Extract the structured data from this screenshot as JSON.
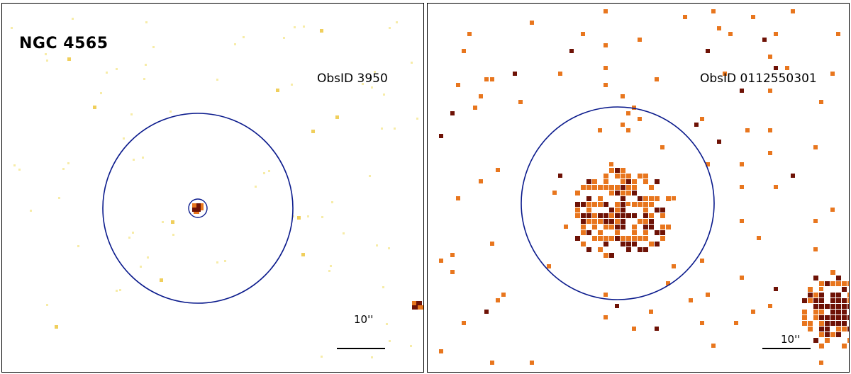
{
  "left_panel": {
    "title": "NGC 4565",
    "obsid": "ObsID 3950",
    "scale_label": "10''"
  },
  "right_panel": {
    "obsid": "ObsID 0112550301",
    "scale_label": "10''"
  },
  "colors": {
    "region_circle": "#0a1a8c",
    "faint_pixel": "#f5e08a",
    "mid_pixel": "#e8761e",
    "bright_pixel": "#6e1206"
  }
}
